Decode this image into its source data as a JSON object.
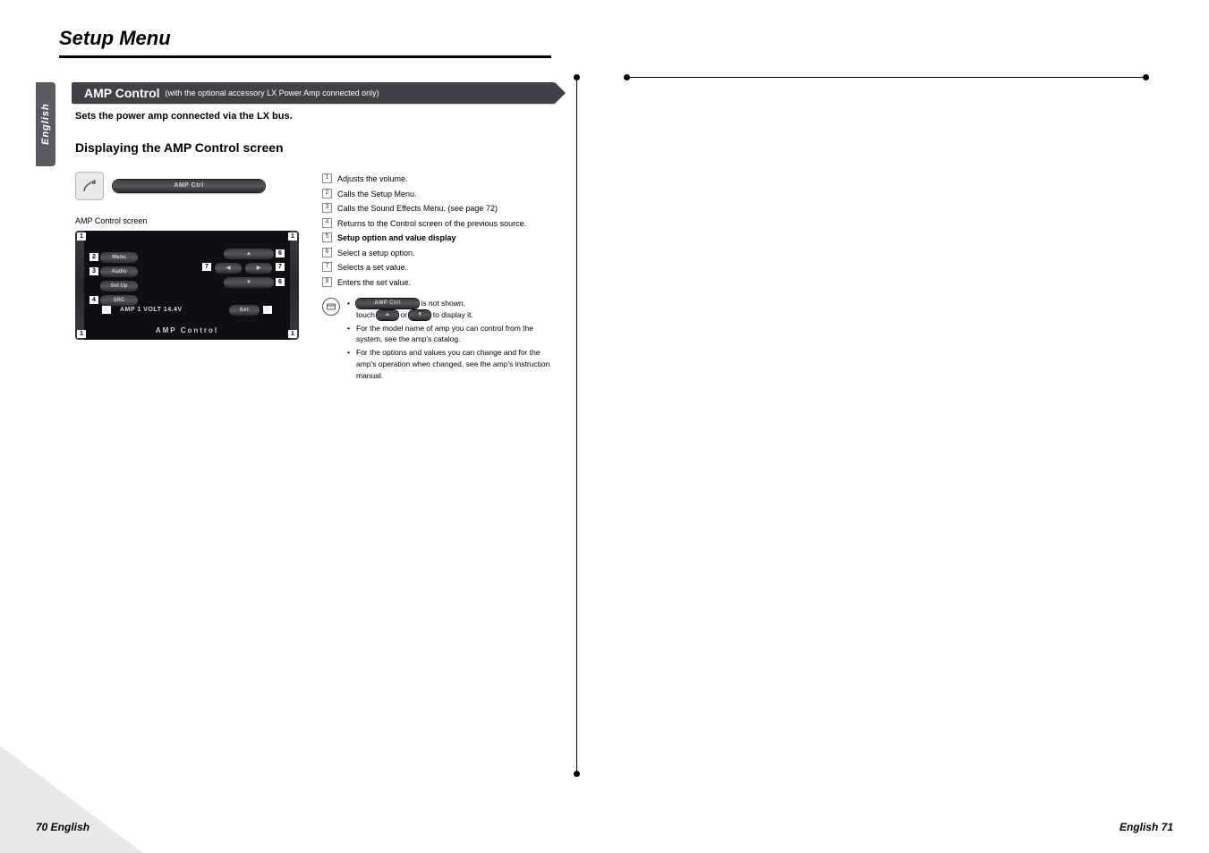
{
  "colors": {
    "banner_bg": "#404048",
    "tab_bg": "#5a5a60",
    "screen_bg": "#0d0f12",
    "pill_text": "#cfd0d4",
    "corner": "#e9e9eb"
  },
  "page": {
    "title": "Setup Menu",
    "lang_tab": "English",
    "footer_left": "70 English",
    "footer_right": "English 71"
  },
  "banner": {
    "title": "AMP Control",
    "subtitle": "(with the optional accessory LX Power Amp connected only)"
  },
  "subheader": "Sets the power amp connected via the LX bus.",
  "section_heading": "Displaying the AMP Control screen",
  "amp_button": {
    "label": "AMP Ctrl"
  },
  "caption": "AMP Control screen",
  "screen": {
    "left_buttons": [
      "Menu",
      "Audio",
      "Set Up",
      "SRC"
    ],
    "status_text": "AMP 1 VOLT 14.4V",
    "set_label": "Set",
    "title_bar": "AMP Control",
    "arrows": {
      "up": "▲",
      "down": "▼",
      "left": "◀",
      "right": "▶"
    },
    "callouts": [
      "1",
      "2",
      "3",
      "4",
      "5",
      "6",
      "7",
      "8"
    ]
  },
  "descriptions": [
    {
      "n": "1",
      "text": "Adjusts the volume.",
      "bold": false
    },
    {
      "n": "2",
      "text": "Calls the Setup Menu.",
      "bold": false
    },
    {
      "n": "3",
      "text": "Calls the Sound Effects Menu. (see page 72)",
      "bold": false
    },
    {
      "n": "4",
      "text": "Returns to the Control screen of the previous source.",
      "bold": false
    },
    {
      "n": "5",
      "text": "Setup option and value display",
      "bold": true
    },
    {
      "n": "6",
      "text": "Select a setup option.",
      "bold": false
    },
    {
      "n": "7",
      "text": "Selects a set value.",
      "bold": false
    },
    {
      "n": "8",
      "text": "Enters the set value.",
      "bold": false
    }
  ],
  "notes": {
    "line1_pre": "",
    "pill_label": "AMP Ctrl",
    "line1_mid": " is not shown,",
    "line2_a": "touch",
    "arrow_up": "▲",
    "line2_b": "or",
    "arrow_down": "▼",
    "line2_c": "to display it.",
    "b2": "For the model name of amp you can control from the system, see the amp's catalog.",
    "b3": "For the options and values you can change and for the amp's operation when changed, see the amp's instruction manual."
  }
}
